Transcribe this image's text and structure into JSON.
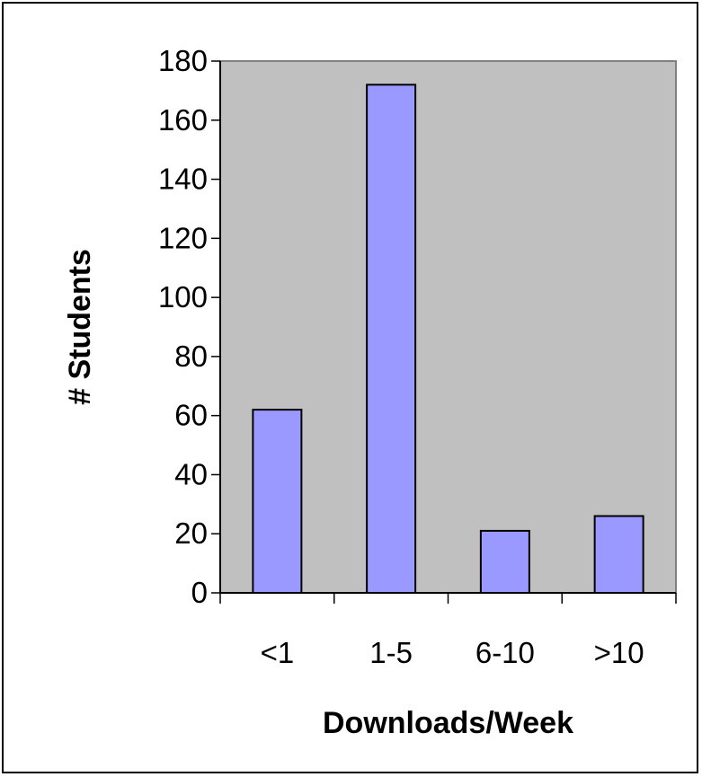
{
  "chart_data": {
    "type": "bar",
    "categories": [
      "<1",
      "1-5",
      "6-10",
      ">10"
    ],
    "values": [
      62,
      172,
      21,
      26
    ],
    "xlabel": "Downloads/Week",
    "ylabel": "# Students",
    "ylim": [
      0,
      180
    ],
    "yticks": [
      "0",
      "20",
      "40",
      "60",
      "80",
      "100",
      "120",
      "140",
      "160",
      "180"
    ],
    "grid": false,
    "legend": "none",
    "colors": {
      "bar_fill": "#9999ff",
      "bar_stroke": "#000000",
      "plot_background": "#c0c0c0",
      "plot_border": "#808080",
      "axis": "#000000"
    }
  }
}
